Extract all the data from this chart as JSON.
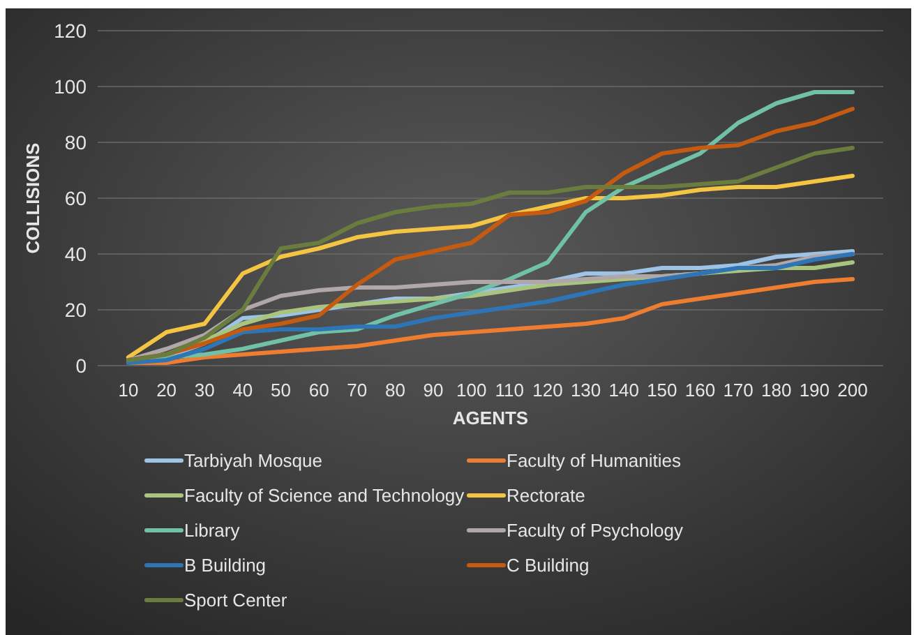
{
  "chart_data": {
    "type": "line",
    "xlabel": "AGENTS",
    "ylabel": "COLLISIONS",
    "categories": [
      "10",
      "20",
      "30",
      "40",
      "50",
      "60",
      "70",
      "80",
      "90",
      "100",
      "110",
      "120",
      "130",
      "140",
      "150",
      "160",
      "170",
      "180",
      "190",
      "200"
    ],
    "ylim": [
      0,
      120
    ],
    "yticks": [
      0,
      20,
      40,
      60,
      80,
      100,
      120
    ],
    "grid": "y",
    "legend": "bottom",
    "line_style": "solid",
    "series": [
      {
        "name": "Tarbiyah Mosque",
        "color": "#9dc3e6",
        "values": [
          2,
          3,
          8,
          17,
          18,
          20,
          22,
          24,
          24,
          26,
          28,
          30,
          33,
          33,
          35,
          35,
          36,
          39,
          40,
          41
        ]
      },
      {
        "name": "Faculty of Humanities",
        "color": "#ed7d31",
        "values": [
          1,
          1,
          3,
          4,
          5,
          6,
          7,
          9,
          11,
          12,
          13,
          14,
          15,
          17,
          22,
          24,
          26,
          28,
          30,
          31
        ]
      },
      {
        "name": "Faculty of Science and Technology",
        "color": "#a9c47f",
        "values": [
          2,
          4,
          9,
          15,
          19,
          21,
          22,
          23,
          24,
          25,
          27,
          29,
          30,
          31,
          32,
          33,
          34,
          35,
          35,
          37
        ]
      },
      {
        "name": "Rectorate",
        "color": "#f4c542",
        "values": [
          3,
          12,
          15,
          33,
          39,
          42,
          46,
          48,
          49,
          50,
          54,
          57,
          60,
          60,
          61,
          63,
          64,
          64,
          66,
          68
        ]
      },
      {
        "name": "Library",
        "color": "#70c1a8",
        "values": [
          2,
          3,
          4,
          6,
          9,
          12,
          13,
          18,
          22,
          26,
          31,
          37,
          55,
          64,
          70,
          76,
          87,
          94,
          98,
          98
        ]
      },
      {
        "name": "Faculty of Psychology",
        "color": "#b0a8a8",
        "values": [
          2,
          6,
          11,
          20,
          25,
          27,
          28,
          28,
          29,
          30,
          30,
          30,
          31,
          32,
          32,
          33,
          35,
          36,
          39,
          40
        ]
      },
      {
        "name": "B Building",
        "color": "#2e75b6",
        "values": [
          1,
          2,
          6,
          12,
          13,
          13,
          14,
          14,
          17,
          19,
          21,
          23,
          26,
          29,
          31,
          33,
          35,
          35,
          38,
          40
        ]
      },
      {
        "name": "C Building",
        "color": "#c55a11",
        "values": [
          2,
          4,
          8,
          13,
          15,
          18,
          29,
          38,
          41,
          44,
          54,
          55,
          59,
          69,
          76,
          78,
          79,
          84,
          87,
          92
        ]
      },
      {
        "name": "Sport Center",
        "color": "#6b7d3e",
        "values": [
          2,
          4,
          10,
          20,
          42,
          44,
          51,
          55,
          57,
          58,
          62,
          62,
          64,
          64,
          64,
          65,
          66,
          71,
          76,
          78
        ]
      }
    ]
  }
}
